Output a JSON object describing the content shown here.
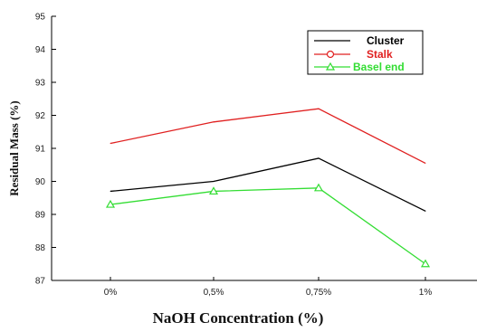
{
  "chart_data": {
    "type": "line",
    "title": "",
    "xlabel": "NaOH Concentration (%)",
    "ylabel": "Residual Mass (%)",
    "categories": [
      "0%",
      "0,5%",
      "0,75%",
      "1%"
    ],
    "ylim": [
      87,
      95
    ],
    "yticks": [
      "87",
      "88",
      "89",
      "90",
      "91",
      "92",
      "93",
      "94",
      "95"
    ],
    "grid": false,
    "legend_position": "top-right",
    "series": [
      {
        "name": "Cluster",
        "values": [
          89.7,
          90.0,
          90.7,
          89.1
        ],
        "color": "#000000",
        "marker": "none"
      },
      {
        "name": "Stalk",
        "values": [
          91.15,
          91.8,
          92.2,
          90.55
        ],
        "color": "#e02020",
        "marker": "circle"
      },
      {
        "name": "Basel end",
        "values": [
          89.3,
          89.7,
          89.8,
          87.5
        ],
        "color": "#33dd33",
        "marker": "triangle"
      }
    ]
  }
}
